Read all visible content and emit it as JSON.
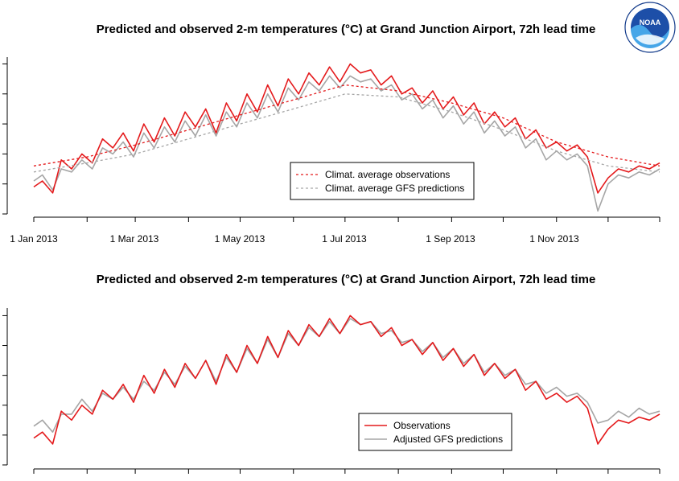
{
  "logo": {
    "text": "NOAA",
    "ring_text": "NATIONAL OCEANIC AND ATMOSPHERIC ADMINISTRATION · U.S. DEPARTMENT OF COMMERCE"
  },
  "colors": {
    "observed": "#e41a1c",
    "predicted": "#a6a6a6",
    "axis": "#000000"
  },
  "chart_data": [
    {
      "type": "line",
      "title": "Predicted and observed 2-m temperatures (°C) at Grand Junction Airport, 72h lead time",
      "x_axis": {
        "range": [
          "2013-01-01",
          "2013-12-31"
        ],
        "tick_labels": [
          "1 Jan 2013",
          "1 Mar 2013",
          "1 May 2013",
          "1 Jul 2013",
          "1 Sep 2013",
          "1 Nov 2013"
        ],
        "tick_dates": [
          "2013-01-01",
          "2013-02-01",
          "2013-03-01",
          "2013-04-01",
          "2013-05-01",
          "2013-06-01",
          "2013-07-01",
          "2013-08-01",
          "2013-09-01",
          "2013-10-01",
          "2013-11-01",
          "2013-12-01",
          "2013-12-31"
        ]
      },
      "y_axis": {
        "tick_values": [
          -10,
          0,
          10,
          20,
          30,
          40
        ],
        "range": [
          -10,
          42
        ]
      },
      "grid": false,
      "legend": {
        "placement": "center-right",
        "entries": [
          {
            "label": "Climat. average observations",
            "color": "#e41a1c",
            "style": "dashed"
          },
          {
            "label": "Climat. average GFS predictions",
            "color": "#a6a6a6",
            "style": "dashed"
          }
        ]
      },
      "series": [
        {
          "name": "Climat. average observations",
          "style": "dashed",
          "color": "#e41a1c",
          "x": [
            "2013-01-01",
            "2013-02-01",
            "2013-03-01",
            "2013-04-01",
            "2013-05-01",
            "2013-06-01",
            "2013-07-01",
            "2013-08-01",
            "2013-09-01",
            "2013-10-01",
            "2013-11-01",
            "2013-12-01",
            "2013-12-31"
          ],
          "values": [
            6,
            9,
            13,
            18,
            23,
            28,
            33,
            31,
            27,
            22,
            14,
            9,
            6
          ]
        },
        {
          "name": "Climat. average GFS predictions",
          "style": "dashed",
          "color": "#a6a6a6",
          "x": [
            "2013-01-01",
            "2013-02-01",
            "2013-03-01",
            "2013-04-01",
            "2013-05-01",
            "2013-06-01",
            "2013-07-01",
            "2013-08-01",
            "2013-09-01",
            "2013-10-01",
            "2013-11-01",
            "2013-12-01",
            "2013-12-31"
          ],
          "values": [
            4,
            7,
            10,
            15,
            20,
            25,
            30,
            29,
            24,
            18,
            11,
            6,
            4
          ]
        },
        {
          "name": "Observations",
          "style": "solid",
          "color": "#e41a1c",
          "x": [
            "2013-01-01",
            "2013-01-06",
            "2013-01-12",
            "2013-01-17",
            "2013-01-23",
            "2013-01-29",
            "2013-02-04",
            "2013-02-10",
            "2013-02-16",
            "2013-02-22",
            "2013-02-28",
            "2013-03-06",
            "2013-03-12",
            "2013-03-18",
            "2013-03-24",
            "2013-03-30",
            "2013-04-05",
            "2013-04-11",
            "2013-04-17",
            "2013-04-23",
            "2013-04-29",
            "2013-05-05",
            "2013-05-11",
            "2013-05-17",
            "2013-05-23",
            "2013-05-29",
            "2013-06-04",
            "2013-06-10",
            "2013-06-16",
            "2013-06-22",
            "2013-06-28",
            "2013-07-04",
            "2013-07-10",
            "2013-07-16",
            "2013-07-22",
            "2013-07-28",
            "2013-08-03",
            "2013-08-09",
            "2013-08-15",
            "2013-08-21",
            "2013-08-27",
            "2013-09-02",
            "2013-09-08",
            "2013-09-14",
            "2013-09-20",
            "2013-09-26",
            "2013-10-02",
            "2013-10-08",
            "2013-10-14",
            "2013-10-20",
            "2013-10-26",
            "2013-11-01",
            "2013-11-07",
            "2013-11-13",
            "2013-11-19",
            "2013-11-25",
            "2013-12-01",
            "2013-12-07",
            "2013-12-13",
            "2013-12-19",
            "2013-12-25",
            "2013-12-31"
          ],
          "values": [
            -1,
            1,
            -3,
            8,
            5,
            10,
            7,
            15,
            12,
            17,
            11,
            20,
            14,
            22,
            16,
            24,
            19,
            25,
            17,
            27,
            21,
            30,
            24,
            33,
            26,
            35,
            30,
            37,
            33,
            39,
            34,
            40,
            37,
            38,
            33,
            36,
            30,
            32,
            27,
            31,
            25,
            29,
            23,
            27,
            20,
            24,
            19,
            22,
            15,
            18,
            12,
            14,
            11,
            13,
            9,
            -3,
            2,
            5,
            4,
            6,
            5,
            7
          ]
        },
        {
          "name": "GFS predictions",
          "style": "solid",
          "color": "#a6a6a6",
          "x": [
            "2013-01-01",
            "2013-01-06",
            "2013-01-12",
            "2013-01-17",
            "2013-01-23",
            "2013-01-29",
            "2013-02-04",
            "2013-02-10",
            "2013-02-16",
            "2013-02-22",
            "2013-02-28",
            "2013-03-06",
            "2013-03-12",
            "2013-03-18",
            "2013-03-24",
            "2013-03-30",
            "2013-04-05",
            "2013-04-11",
            "2013-04-17",
            "2013-04-23",
            "2013-04-29",
            "2013-05-05",
            "2013-05-11",
            "2013-05-17",
            "2013-05-23",
            "2013-05-29",
            "2013-06-04",
            "2013-06-10",
            "2013-06-16",
            "2013-06-22",
            "2013-06-28",
            "2013-07-04",
            "2013-07-10",
            "2013-07-16",
            "2013-07-22",
            "2013-07-28",
            "2013-08-03",
            "2013-08-09",
            "2013-08-15",
            "2013-08-21",
            "2013-08-27",
            "2013-09-02",
            "2013-09-08",
            "2013-09-14",
            "2013-09-20",
            "2013-09-26",
            "2013-10-02",
            "2013-10-08",
            "2013-10-14",
            "2013-10-20",
            "2013-10-26",
            "2013-11-01",
            "2013-11-07",
            "2013-11-13",
            "2013-11-19",
            "2013-11-25",
            "2013-12-01",
            "2013-12-07",
            "2013-12-13",
            "2013-12-19",
            "2013-12-25",
            "2013-12-31"
          ],
          "values": [
            1,
            3,
            -2,
            5,
            4,
            8,
            5,
            12,
            10,
            14,
            9,
            17,
            12,
            19,
            14,
            21,
            16,
            23,
            16,
            24,
            19,
            27,
            22,
            30,
            24,
            32,
            28,
            34,
            31,
            36,
            32,
            36,
            34,
            35,
            31,
            33,
            28,
            30,
            25,
            28,
            22,
            26,
            20,
            24,
            17,
            21,
            16,
            19,
            12,
            15,
            8,
            11,
            8,
            10,
            6,
            -9,
            0,
            3,
            2,
            4,
            3,
            5
          ]
        }
      ]
    },
    {
      "type": "line",
      "title": "Predicted and observed 2-m temperatures (°C) at Grand Junction Airport, 72h lead time",
      "x_axis": {
        "range": [
          "2013-01-01",
          "2013-12-31"
        ],
        "tick_dates": [
          "2013-01-01",
          "2013-02-01",
          "2013-03-01",
          "2013-04-01",
          "2013-05-01",
          "2013-06-01",
          "2013-07-01",
          "2013-08-01",
          "2013-09-01",
          "2013-10-01",
          "2013-11-01",
          "2013-12-01",
          "2013-12-31"
        ]
      },
      "y_axis": {
        "tick_values": [
          -10,
          0,
          10,
          20,
          30,
          40
        ],
        "range": [
          -10,
          42
        ]
      },
      "grid": false,
      "legend": {
        "placement": "center-right",
        "entries": [
          {
            "label": "Observations",
            "color": "#e41a1c",
            "style": "solid"
          },
          {
            "label": "Adjusted GFS predictions",
            "color": "#a6a6a6",
            "style": "solid"
          }
        ]
      },
      "series": [
        {
          "name": "Observations",
          "style": "solid",
          "color": "#e41a1c",
          "x": [
            "2013-01-01",
            "2013-01-06",
            "2013-01-12",
            "2013-01-17",
            "2013-01-23",
            "2013-01-29",
            "2013-02-04",
            "2013-02-10",
            "2013-02-16",
            "2013-02-22",
            "2013-02-28",
            "2013-03-06",
            "2013-03-12",
            "2013-03-18",
            "2013-03-24",
            "2013-03-30",
            "2013-04-05",
            "2013-04-11",
            "2013-04-17",
            "2013-04-23",
            "2013-04-29",
            "2013-05-05",
            "2013-05-11",
            "2013-05-17",
            "2013-05-23",
            "2013-05-29",
            "2013-06-04",
            "2013-06-10",
            "2013-06-16",
            "2013-06-22",
            "2013-06-28",
            "2013-07-04",
            "2013-07-10",
            "2013-07-16",
            "2013-07-22",
            "2013-07-28",
            "2013-08-03",
            "2013-08-09",
            "2013-08-15",
            "2013-08-21",
            "2013-08-27",
            "2013-09-02",
            "2013-09-08",
            "2013-09-14",
            "2013-09-20",
            "2013-09-26",
            "2013-10-02",
            "2013-10-08",
            "2013-10-14",
            "2013-10-20",
            "2013-10-26",
            "2013-11-01",
            "2013-11-07",
            "2013-11-13",
            "2013-11-19",
            "2013-11-25",
            "2013-12-01",
            "2013-12-07",
            "2013-12-13",
            "2013-12-19",
            "2013-12-25",
            "2013-12-31"
          ],
          "values": [
            -1,
            1,
            -3,
            8,
            5,
            10,
            7,
            15,
            12,
            17,
            11,
            20,
            14,
            22,
            16,
            24,
            19,
            25,
            17,
            27,
            21,
            30,
            24,
            33,
            26,
            35,
            30,
            37,
            33,
            39,
            34,
            40,
            37,
            38,
            33,
            36,
            30,
            32,
            27,
            31,
            25,
            29,
            23,
            27,
            20,
            24,
            19,
            22,
            15,
            18,
            12,
            14,
            11,
            13,
            9,
            -3,
            2,
            5,
            4,
            6,
            5,
            7
          ]
        },
        {
          "name": "Adjusted GFS predictions",
          "style": "solid",
          "color": "#a6a6a6",
          "x": [
            "2013-01-01",
            "2013-01-06",
            "2013-01-12",
            "2013-01-17",
            "2013-01-23",
            "2013-01-29",
            "2013-02-04",
            "2013-02-10",
            "2013-02-16",
            "2013-02-22",
            "2013-02-28",
            "2013-03-06",
            "2013-03-12",
            "2013-03-18",
            "2013-03-24",
            "2013-03-30",
            "2013-04-05",
            "2013-04-11",
            "2013-04-17",
            "2013-04-23",
            "2013-04-29",
            "2013-05-05",
            "2013-05-11",
            "2013-05-17",
            "2013-05-23",
            "2013-05-29",
            "2013-06-04",
            "2013-06-10",
            "2013-06-16",
            "2013-06-22",
            "2013-06-28",
            "2013-07-04",
            "2013-07-10",
            "2013-07-16",
            "2013-07-22",
            "2013-07-28",
            "2013-08-03",
            "2013-08-09",
            "2013-08-15",
            "2013-08-21",
            "2013-08-27",
            "2013-09-02",
            "2013-09-08",
            "2013-09-14",
            "2013-09-20",
            "2013-09-26",
            "2013-10-02",
            "2013-10-08",
            "2013-10-14",
            "2013-10-20",
            "2013-10-26",
            "2013-11-01",
            "2013-11-07",
            "2013-11-13",
            "2013-11-19",
            "2013-11-25",
            "2013-12-01",
            "2013-12-07",
            "2013-12-13",
            "2013-12-19",
            "2013-12-25",
            "2013-12-31"
          ],
          "values": [
            3,
            5,
            1,
            7,
            7,
            12,
            8,
            14,
            12,
            16,
            12,
            18,
            15,
            21,
            17,
            23,
            19,
            25,
            18,
            26,
            21,
            29,
            24,
            32,
            26,
            34,
            30,
            36,
            33,
            38,
            34,
            39,
            37,
            38,
            34,
            35,
            31,
            32,
            28,
            31,
            26,
            29,
            24,
            27,
            21,
            24,
            20,
            22,
            17,
            18,
            14,
            16,
            13,
            14,
            11,
            4,
            5,
            8,
            6,
            9,
            7,
            8
          ]
        }
      ]
    }
  ]
}
